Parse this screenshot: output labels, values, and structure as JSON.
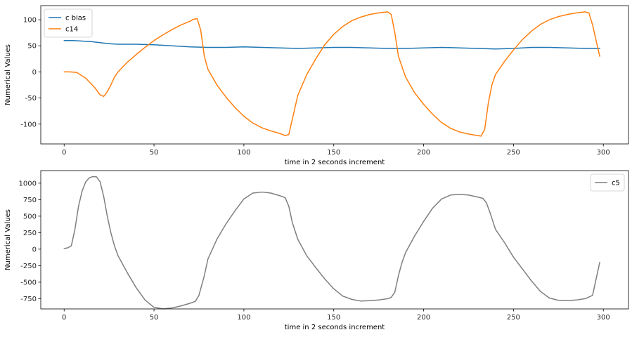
{
  "chart_data": [
    {
      "type": "line",
      "xlabel": "time in 2 seconds increment",
      "ylabel": "Numerical Values",
      "xlim": [
        -13,
        314
      ],
      "ylim": [
        -138,
        127
      ],
      "xticks": [
        0,
        50,
        100,
        150,
        200,
        250,
        300
      ],
      "yticks": [
        -100,
        -50,
        0,
        50,
        100
      ],
      "legend": "top-left",
      "grid": false,
      "series": [
        {
          "name": "c bias",
          "color": "#1f77b4",
          "x": [
            0,
            5,
            10,
            15,
            20,
            25,
            30,
            40,
            50,
            60,
            70,
            80,
            90,
            100,
            110,
            120,
            130,
            140,
            150,
            160,
            170,
            180,
            190,
            200,
            210,
            220,
            230,
            240,
            250,
            260,
            270,
            280,
            290,
            298
          ],
          "y": [
            60,
            60,
            59,
            58,
            56,
            54,
            53,
            53,
            52,
            50,
            48,
            47,
            47,
            48,
            47,
            46,
            45,
            46,
            47,
            47,
            46,
            45,
            45,
            46,
            47,
            46,
            45,
            44,
            45,
            47,
            47,
            46,
            45,
            45
          ]
        },
        {
          "name": "c14",
          "color": "#ff7f0e",
          "x": [
            0,
            3,
            7,
            12,
            17,
            20,
            22,
            24,
            26,
            28,
            30,
            35,
            40,
            45,
            50,
            55,
            60,
            65,
            70,
            72,
            74,
            76,
            78,
            80,
            85,
            90,
            95,
            100,
            105,
            110,
            115,
            120,
            123,
            125,
            127,
            130,
            135,
            140,
            145,
            150,
            155,
            160,
            165,
            170,
            175,
            180,
            182,
            184,
            186,
            188,
            190,
            195,
            200,
            205,
            210,
            215,
            220,
            225,
            230,
            232,
            234,
            236,
            238,
            240,
            245,
            250,
            255,
            260,
            265,
            270,
            275,
            280,
            285,
            290,
            292,
            294,
            296,
            298
          ],
          "y": [
            0,
            0,
            -1,
            -12,
            -30,
            -44,
            -47,
            -38,
            -25,
            -10,
            0,
            18,
            33,
            47,
            60,
            71,
            81,
            90,
            97,
            101,
            102,
            80,
            30,
            5,
            -25,
            -48,
            -68,
            -85,
            -98,
            -107,
            -113,
            -118,
            -122,
            -120,
            -90,
            -45,
            -5,
            25,
            52,
            72,
            87,
            98,
            105,
            110,
            113,
            115,
            110,
            75,
            30,
            10,
            -10,
            -40,
            -62,
            -81,
            -97,
            -108,
            -115,
            -119,
            -122,
            -123,
            -110,
            -60,
            -25,
            -5,
            20,
            42,
            62,
            78,
            91,
            100,
            106,
            110,
            113,
            115,
            113,
            90,
            60,
            30
          ]
        }
      ]
    },
    {
      "type": "line",
      "xlabel": "time in 2 seconds increment",
      "ylabel": "Numerical Values",
      "xlim": [
        -13,
        314
      ],
      "ylim": [
        -905,
        1190
      ],
      "xticks": [
        0,
        50,
        100,
        150,
        200,
        250,
        300
      ],
      "yticks": [
        -750,
        -500,
        -250,
        0,
        250,
        500,
        750,
        1000
      ],
      "legend": "top-right",
      "grid": false,
      "series": [
        {
          "name": "c5",
          "color": "#7f7f7f",
          "x": [
            0,
            2,
            4,
            6,
            8,
            10,
            12,
            14,
            16,
            18,
            20,
            22,
            24,
            26,
            28,
            30,
            35,
            40,
            45,
            50,
            55,
            60,
            65,
            70,
            73,
            75,
            78,
            80,
            85,
            90,
            95,
            100,
            105,
            110,
            115,
            120,
            123,
            125,
            127,
            130,
            135,
            140,
            145,
            150,
            155,
            160,
            165,
            170,
            175,
            180,
            182,
            184,
            186,
            188,
            190,
            195,
            200,
            205,
            210,
            215,
            220,
            225,
            230,
            233,
            235,
            237,
            240,
            245,
            250,
            255,
            260,
            265,
            270,
            275,
            280,
            285,
            290,
            294,
            296,
            298
          ],
          "y": [
            10,
            20,
            50,
            300,
            650,
            880,
            1020,
            1080,
            1100,
            1095,
            1020,
            800,
            500,
            250,
            50,
            -100,
            -350,
            -580,
            -770,
            -880,
            -905,
            -890,
            -860,
            -820,
            -790,
            -700,
            -400,
            -150,
            150,
            380,
            580,
            760,
            850,
            865,
            850,
            810,
            780,
            650,
            400,
            150,
            -100,
            -280,
            -450,
            -600,
            -710,
            -760,
            -785,
            -780,
            -770,
            -750,
            -730,
            -650,
            -400,
            -200,
            -50,
            200,
            420,
            620,
            760,
            820,
            830,
            820,
            790,
            770,
            700,
            550,
            300,
            100,
            -120,
            -300,
            -480,
            -640,
            -740,
            -775,
            -780,
            -770,
            -750,
            -700,
            -450,
            -200
          ]
        }
      ]
    }
  ]
}
